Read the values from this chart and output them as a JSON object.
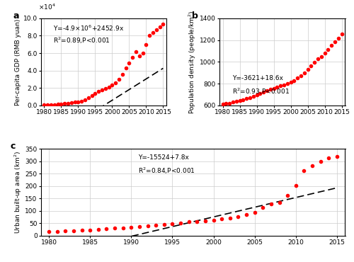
{
  "years": [
    1980,
    1981,
    1982,
    1983,
    1984,
    1985,
    1986,
    1987,
    1988,
    1989,
    1990,
    1991,
    1992,
    1993,
    1994,
    1995,
    1996,
    1997,
    1998,
    1999,
    2000,
    2001,
    2002,
    2003,
    2004,
    2005,
    2006,
    2007,
    2008,
    2009,
    2010,
    2011,
    2012,
    2013,
    2014,
    2015
  ],
  "gdp": [
    500,
    600,
    700,
    900,
    1200,
    1600,
    2000,
    2500,
    3200,
    3500,
    4000,
    4800,
    6500,
    8500,
    11000,
    14000,
    16000,
    18000,
    19500,
    21000,
    23000,
    26000,
    30000,
    36000,
    43000,
    49000,
    55000,
    62000,
    57000,
    60000,
    70000,
    80000,
    84000,
    87000,
    90000,
    93000
  ],
  "pop_density": [
    610,
    615,
    620,
    628,
    636,
    645,
    653,
    662,
    673,
    685,
    697,
    710,
    722,
    733,
    745,
    757,
    768,
    778,
    788,
    798,
    810,
    828,
    850,
    873,
    898,
    928,
    960,
    995,
    1025,
    1050,
    1080,
    1115,
    1150,
    1185,
    1220,
    1255
  ],
  "urban_area": [
    17,
    18,
    19,
    20,
    22,
    24,
    26,
    28,
    30,
    32,
    35,
    37,
    40,
    42,
    45,
    48,
    52,
    56,
    58,
    60,
    63,
    67,
    72,
    78,
    85,
    95,
    113,
    128,
    133,
    163,
    203,
    263,
    283,
    300,
    312,
    320
  ],
  "gdp_fit_slope": 2452.9,
  "gdp_fit_intercept": -4900000,
  "pop_fit_slope": 18.6,
  "pop_fit_intercept": -3621,
  "urban_fit_slope": 7.8,
  "urban_fit_intercept": -15524,
  "dot_color": "#ff0000",
  "line_color": "#000000",
  "annotation_a_line1": "Y=-4.9×10",
  "annotation_a_sup": "6",
  "annotation_a_line1_rest": "+2452.9x",
  "annotation_a_line2": "R$^{2}$=0.89,P<0.001",
  "annotation_b_line1": "Y=-3621+18.6x",
  "annotation_b_line2": "R$^{2}$=0.93,P<0.001",
  "annotation_c_line1": "Y=-15524+7.8x",
  "annotation_c_line2": "R$^{2}$=0.84,P<0.001",
  "ylabel_a": "Per-capita GDP (RMB yuan)",
  "ylabel_b": "Population density (people/km$^{2}$)",
  "ylabel_c": "Urban built-up area (km$^{2}$)",
  "xlim": [
    1979,
    2016
  ],
  "xticks": [
    1980,
    1985,
    1990,
    1995,
    2000,
    2005,
    2010,
    2015
  ],
  "ylim_a_raw": [
    0,
    100000
  ],
  "yticks_a_raw": [
    0,
    20000,
    40000,
    60000,
    80000,
    100000
  ],
  "ylim_b": [
    600,
    1400
  ],
  "yticks_b": [
    600,
    800,
    1000,
    1200,
    1400
  ],
  "ylim_c": [
    0,
    350
  ],
  "yticks_c": [
    0,
    50,
    100,
    150,
    200,
    250,
    300,
    350
  ],
  "grid_color": "#cccccc",
  "bg_color": "#ffffff"
}
